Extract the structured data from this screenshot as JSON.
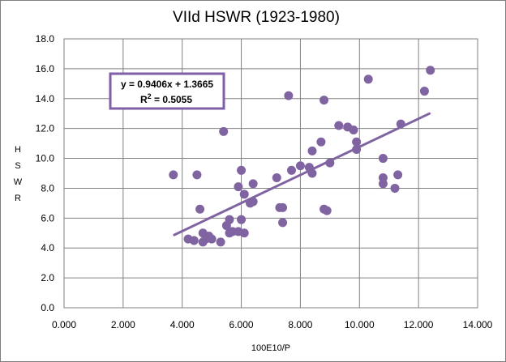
{
  "chart_data": {
    "type": "scatter",
    "title": "VIId HSWR (1923-1980)",
    "xlabel": "100E10/P",
    "ylabel": [
      "H",
      "S",
      "W",
      "R"
    ],
    "xlim": [
      0,
      14
    ],
    "ylim": [
      0,
      18
    ],
    "x_ticks": [
      "0.000",
      "2.000",
      "4.000",
      "6.000",
      "8.000",
      "10.000",
      "12.000",
      "14.000"
    ],
    "y_ticks": [
      "0.0",
      "2.0",
      "4.0",
      "6.0",
      "8.0",
      "10.0",
      "12.0",
      "14.0",
      "16.0",
      "18.0"
    ],
    "x_tick_values": [
      0,
      2,
      4,
      6,
      8,
      10,
      12,
      14
    ],
    "y_tick_values": [
      0,
      2,
      4,
      6,
      8,
      10,
      12,
      14,
      16,
      18
    ],
    "grid": true,
    "marker_color": "#8064A2",
    "points": [
      [
        3.7,
        8.9
      ],
      [
        4.2,
        4.6
      ],
      [
        4.4,
        4.5
      ],
      [
        4.5,
        8.9
      ],
      [
        4.6,
        6.6
      ],
      [
        4.7,
        4.4
      ],
      [
        4.7,
        5.0
      ],
      [
        4.8,
        4.6
      ],
      [
        4.9,
        4.8
      ],
      [
        5.0,
        4.6
      ],
      [
        5.3,
        4.4
      ],
      [
        5.4,
        11.8
      ],
      [
        5.5,
        5.5
      ],
      [
        5.6,
        5.9
      ],
      [
        5.6,
        5.0
      ],
      [
        5.7,
        5.1
      ],
      [
        5.9,
        8.1
      ],
      [
        5.9,
        5.1
      ],
      [
        6.0,
        9.2
      ],
      [
        6.0,
        5.9
      ],
      [
        6.1,
        7.6
      ],
      [
        6.1,
        5.0
      ],
      [
        6.3,
        7.0
      ],
      [
        6.4,
        7.1
      ],
      [
        6.4,
        8.3
      ],
      [
        7.2,
        8.7
      ],
      [
        7.3,
        6.7
      ],
      [
        7.4,
        5.7
      ],
      [
        7.4,
        6.7
      ],
      [
        7.6,
        14.2
      ],
      [
        7.7,
        9.2
      ],
      [
        8.0,
        9.5
      ],
      [
        8.3,
        9.4
      ],
      [
        8.4,
        10.5
      ],
      [
        8.4,
        9.0
      ],
      [
        8.7,
        11.1
      ],
      [
        8.8,
        6.6
      ],
      [
        8.8,
        13.9
      ],
      [
        8.9,
        6.5
      ],
      [
        9.0,
        9.7
      ],
      [
        9.3,
        12.2
      ],
      [
        9.6,
        12.1
      ],
      [
        9.8,
        11.9
      ],
      [
        9.9,
        10.6
      ],
      [
        9.9,
        11.1
      ],
      [
        10.3,
        15.3
      ],
      [
        10.8,
        10.0
      ],
      [
        10.8,
        8.7
      ],
      [
        10.8,
        8.3
      ],
      [
        11.2,
        8.0
      ],
      [
        11.3,
        8.9
      ],
      [
        11.4,
        12.3
      ],
      [
        12.2,
        14.5
      ],
      [
        12.4,
        15.9
      ]
    ],
    "trendline": {
      "slope": 0.9406,
      "intercept": 1.3665,
      "x_range": [
        3.7,
        12.4
      ],
      "color": "#8064A2"
    },
    "equation_box": {
      "line1": "y = 0.9406x  + 1.3665",
      "line2_prefix": "R",
      "line2_sup": "2",
      "line2_suffix": " = 0.5055",
      "border_color": "#7F5FA6"
    }
  }
}
